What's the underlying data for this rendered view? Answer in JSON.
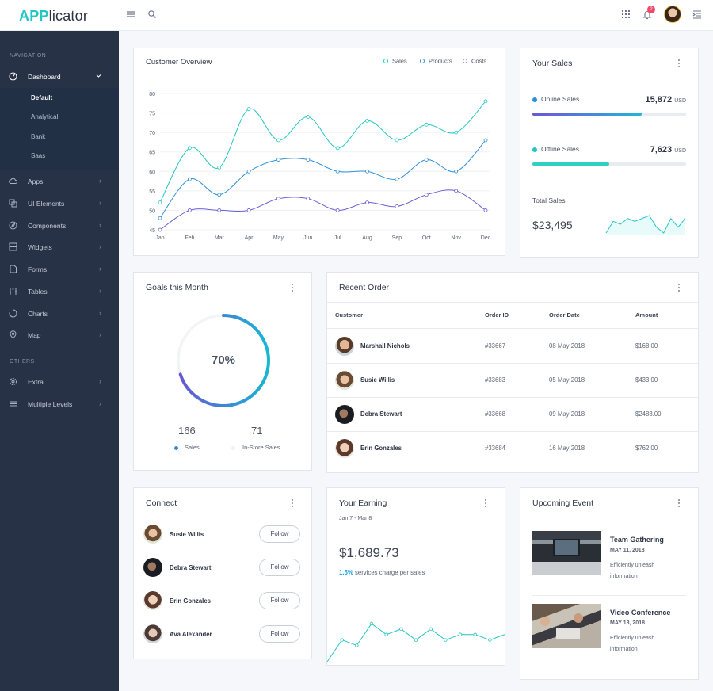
{
  "app": {
    "brand_bold": "APP",
    "brand_rest": "licator"
  },
  "topbar": {
    "notification_count": "2"
  },
  "sidebar": {
    "section_navigation": "NAVIGATION",
    "dashboard": "Dashboard",
    "dashboard_sub": [
      "Default",
      "Analytical",
      "Bank",
      "Saas"
    ],
    "items": [
      "Apps",
      "UI Elements",
      "Components",
      "Widgets",
      "Forms",
      "Tables",
      "Charts",
      "Map"
    ],
    "section_others": "OTHERS",
    "others": [
      "Extra",
      "Multiple Levels"
    ]
  },
  "customer_overview": {
    "title": "Customer Overview",
    "chart_data": {
      "type": "line",
      "categories": [
        "Jan",
        "Feb",
        "Mar",
        "Apr",
        "May",
        "Jun",
        "Jul",
        "Aug",
        "Sep",
        "Oct",
        "Nov",
        "Dec"
      ],
      "y_ticks": [
        "80",
        "75",
        "70",
        "65",
        "60",
        "55",
        "50",
        "45"
      ],
      "ylim": [
        45,
        80
      ],
      "series": [
        {
          "name": "Sales",
          "color": "#21c6c5",
          "values": [
            52,
            66,
            61,
            76,
            68,
            74,
            66,
            73,
            68,
            72,
            70,
            78
          ]
        },
        {
          "name": "Products",
          "color": "#2f8fd6",
          "values": [
            48,
            58,
            54,
            60,
            63,
            63,
            60,
            60,
            58,
            63,
            60,
            68
          ]
        },
        {
          "name": "Costs",
          "color": "#6860d6",
          "values": [
            45,
            50,
            50,
            50,
            53,
            53,
            50,
            52,
            51,
            54,
            55,
            50
          ]
        }
      ]
    }
  },
  "your_sales": {
    "title": "Your Sales",
    "online_label": "Online Sales",
    "online_value": "15,872",
    "online_unit": "USD",
    "online_progress": 0.71,
    "offline_label": "Offline Sales",
    "offline_value": "7,623",
    "offline_unit": "USD",
    "offline_progress": 0.5,
    "total_label": "Total Sales",
    "total_value": "$23,495",
    "spark": [
      1,
      5,
      4,
      6,
      5,
      6,
      7,
      3,
      1,
      6,
      3,
      6
    ]
  },
  "goals": {
    "title": "Goals this Month",
    "percent_label": "70%",
    "percent": 0.7,
    "sales_value": "166",
    "sales_label": "Sales",
    "instore_value": "71",
    "instore_label": "In-Store Sales"
  },
  "recent_order": {
    "title": "Recent Order",
    "headers": [
      "Customer",
      "Order ID",
      "Order Date",
      "Amount"
    ],
    "rows": [
      {
        "customer": "Marshall Nichols",
        "id": "#33667",
        "date": "08 May 2018",
        "amount": "$168.00"
      },
      {
        "customer": "Susie Willis",
        "id": "#33683",
        "date": "05 May 2018",
        "amount": "$433.00"
      },
      {
        "customer": "Debra Stewart",
        "id": "#33668",
        "date": "09 May 2018",
        "amount": "$2488.00"
      },
      {
        "customer": "Erin Gonzales",
        "id": "#33684",
        "date": "16 May 2018",
        "amount": "$762.00"
      }
    ]
  },
  "connect": {
    "title": "Connect",
    "follow_label": "Follow",
    "people": [
      "Susie Willis",
      "Debra Stewart",
      "Erin Gonzales",
      "Ava Alexander"
    ]
  },
  "earning": {
    "title": "Your Earning",
    "range": "Jan 7 - Mar 8",
    "amount": "$1,689.73",
    "percent": "1.5%",
    "note": "services charge per sales",
    "spark": [
      2,
      6,
      5,
      9,
      7,
      8,
      6,
      8,
      6,
      7,
      7,
      6,
      7
    ]
  },
  "events": {
    "title": "Upcoming Event",
    "items": [
      {
        "title": "Team Gathering",
        "date": "MAY 11, 2018",
        "desc1": "Efficiently unleash",
        "desc2": "information"
      },
      {
        "title": "Video Conference",
        "date": "MAY 18, 2018",
        "desc1": "Efficiently unleash",
        "desc2": "information"
      }
    ]
  }
}
